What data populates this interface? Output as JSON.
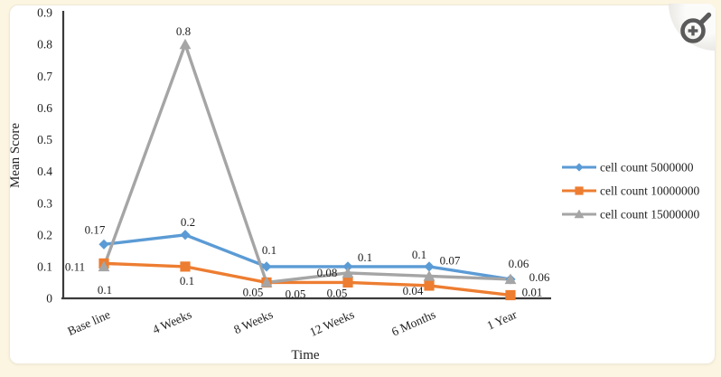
{
  "page": {
    "background": "#FCF5E1",
    "card_background": "#FFFFFF"
  },
  "zoom_button": {
    "icon": "magnifier-plus-icon",
    "icon_color": "#5A5A5A"
  },
  "chart_data": {
    "type": "line",
    "title": "",
    "xlabel": "Time",
    "ylabel": "Mean Score",
    "categories": [
      "Base line",
      "4 Weeks",
      "8 Weeks",
      "12 Weeks",
      "6 Months",
      "1 Year"
    ],
    "yticks": [
      "0",
      "0.1",
      "0.2",
      "0.3",
      "0.4",
      "0.5",
      "0.6",
      "0.7",
      "0.8",
      "0.9"
    ],
    "ylim": [
      0,
      0.9
    ],
    "grid": false,
    "legend_position": "right",
    "colors": {
      "axis": "#3A3A3A",
      "text": "#1E1E1E"
    },
    "series": [
      {
        "name": "cell count 5000000",
        "color": "#5B9BD5",
        "marker": "diamond",
        "values": [
          0.17,
          0.2,
          0.1,
          0.1,
          0.1,
          0.06
        ],
        "point_labels": [
          "0.17",
          "0.2",
          "0.1",
          "0.1",
          "0.1",
          "0.06"
        ],
        "label_offsets": [
          [
            -10,
            -12
          ],
          [
            3,
            -10
          ],
          [
            3,
            -14
          ],
          [
            19,
            -6
          ],
          [
            -11,
            -9
          ],
          [
            9,
            -13
          ]
        ]
      },
      {
        "name": "cell count 10000000",
        "color": "#ED7D31",
        "marker": "square",
        "values": [
          0.11,
          0.1,
          0.05,
          0.05,
          0.04,
          0.01
        ],
        "point_labels": [
          "0.11",
          "0.1",
          "0.05",
          "0.05",
          "0.04",
          "0.01"
        ],
        "label_offsets": [
          [
            -32,
            8
          ],
          [
            2,
            20
          ],
          [
            -15,
            15
          ],
          [
            -12,
            16
          ],
          [
            -18,
            10
          ],
          [
            24,
            1
          ]
        ]
      },
      {
        "name": "cell count 15000000",
        "color": "#A5A5A5",
        "marker": "triangle",
        "values": [
          0.1,
          0.8,
          0.05,
          0.08,
          0.07,
          0.06
        ],
        "point_labels": [
          "0.1",
          "0.8",
          "0.05",
          "0.08",
          "0.07",
          "0.06"
        ],
        "label_offsets": [
          [
            1,
            30
          ],
          [
            -2,
            -10
          ],
          [
            32,
            17
          ],
          [
            -23,
            4
          ],
          [
            23,
            -13
          ],
          [
            32,
            2
          ]
        ]
      }
    ]
  }
}
